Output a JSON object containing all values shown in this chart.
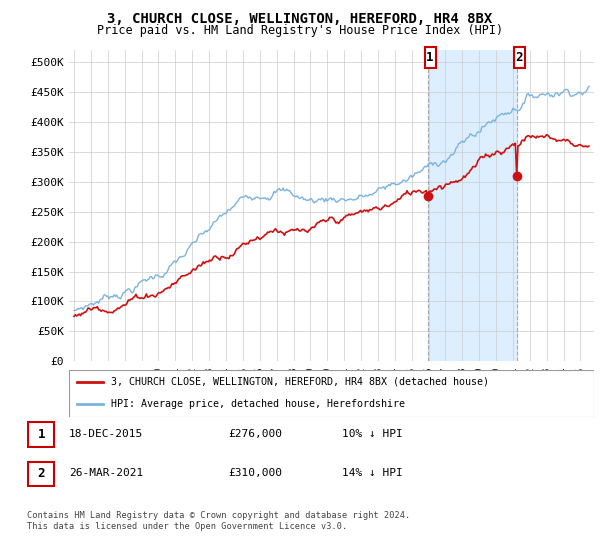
{
  "title": "3, CHURCH CLOSE, WELLINGTON, HEREFORD, HR4 8BX",
  "subtitle": "Price paid vs. HM Land Registry's House Price Index (HPI)",
  "ytick_labels": [
    "£0",
    "£50K",
    "£100K",
    "£150K",
    "£200K",
    "£250K",
    "£300K",
    "£350K",
    "£400K",
    "£450K",
    "£500K"
  ],
  "yticks": [
    0,
    50000,
    100000,
    150000,
    200000,
    250000,
    300000,
    350000,
    400000,
    450000,
    500000
  ],
  "hpi_color": "#7bb3e0",
  "price_color": "#cc1111",
  "marker1_yr": 2015.96,
  "marker1_price": 276000,
  "marker2_yr": 2021.23,
  "marker2_price": 310000,
  "legend_entry1": "3, CHURCH CLOSE, WELLINGTON, HEREFORD, HR4 8BX (detached house)",
  "legend_entry2": "HPI: Average price, detached house, Herefordshire",
  "footnote1": "Contains HM Land Registry data © Crown copyright and database right 2024.",
  "footnote2": "This data is licensed under the Open Government Licence v3.0.",
  "table_row1": [
    "1",
    "18-DEC-2015",
    "£276,000",
    "10% ↓ HPI"
  ],
  "table_row2": [
    "2",
    "26-MAR-2021",
    "£310,000",
    "14% ↓ HPI"
  ],
  "background_color": "#ffffff",
  "grid_color": "#cccccc",
  "shade_color": "#ddeeff",
  "xmin": 1994.7,
  "xmax": 2025.8,
  "ymin": 0,
  "ymax": 520000
}
